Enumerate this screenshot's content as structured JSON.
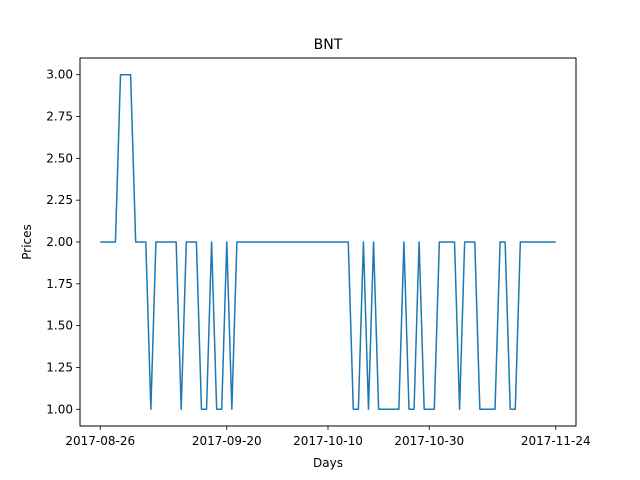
{
  "chart_data": {
    "type": "line",
    "title": "BNT",
    "xlabel": "Days",
    "ylabel": "Prices",
    "x_tick_labels": [
      "2017-08-26",
      "2017-09-20",
      "2017-10-10",
      "2017-10-30",
      "2017-11-24"
    ],
    "y_tick_labels": [
      "1.00",
      "1.25",
      "1.50",
      "1.75",
      "2.00",
      "2.25",
      "2.50",
      "2.75",
      "3.00"
    ],
    "y_ticks": [
      1.0,
      1.25,
      1.5,
      1.75,
      2.0,
      2.25,
      2.5,
      2.75,
      3.0
    ],
    "xlim": [
      "2017-08-22",
      "2017-11-28"
    ],
    "ylim": [
      0.9,
      3.1
    ],
    "grid": false,
    "series": [
      {
        "color": "#1f77b4",
        "x": [
          "2017-08-26",
          "2017-08-27",
          "2017-08-28",
          "2017-08-29",
          "2017-08-30",
          "2017-08-31",
          "2017-09-01",
          "2017-09-02",
          "2017-09-03",
          "2017-09-04",
          "2017-09-05",
          "2017-09-06",
          "2017-09-07",
          "2017-09-08",
          "2017-09-09",
          "2017-09-10",
          "2017-09-11",
          "2017-09-12",
          "2017-09-13",
          "2017-09-14",
          "2017-09-15",
          "2017-09-16",
          "2017-09-17",
          "2017-09-18",
          "2017-09-19",
          "2017-09-20",
          "2017-09-21",
          "2017-09-22",
          "2017-09-23",
          "2017-09-24",
          "2017-09-25",
          "2017-09-26",
          "2017-09-27",
          "2017-09-28",
          "2017-09-29",
          "2017-09-30",
          "2017-10-01",
          "2017-10-02",
          "2017-10-03",
          "2017-10-04",
          "2017-10-05",
          "2017-10-06",
          "2017-10-07",
          "2017-10-08",
          "2017-10-09",
          "2017-10-10",
          "2017-10-11",
          "2017-10-12",
          "2017-10-13",
          "2017-10-14",
          "2017-10-15",
          "2017-10-16",
          "2017-10-17",
          "2017-10-18",
          "2017-10-19",
          "2017-10-20",
          "2017-10-21",
          "2017-10-22",
          "2017-10-23",
          "2017-10-24",
          "2017-10-25",
          "2017-10-26",
          "2017-10-27",
          "2017-10-28",
          "2017-10-29",
          "2017-10-30",
          "2017-10-31",
          "2017-11-01",
          "2017-11-02",
          "2017-11-03",
          "2017-11-04",
          "2017-11-05",
          "2017-11-06",
          "2017-11-07",
          "2017-11-08",
          "2017-11-09",
          "2017-11-10",
          "2017-11-11",
          "2017-11-12",
          "2017-11-13",
          "2017-11-14",
          "2017-11-15",
          "2017-11-16",
          "2017-11-17",
          "2017-11-18",
          "2017-11-19",
          "2017-11-20",
          "2017-11-21",
          "2017-11-22",
          "2017-11-23",
          "2017-11-24"
        ],
        "y": [
          2,
          2,
          2,
          2,
          3,
          3,
          3,
          2,
          2,
          2,
          1,
          2,
          2,
          2,
          2,
          2,
          1,
          2,
          2,
          2,
          1,
          1,
          2,
          1,
          1,
          2,
          1,
          2,
          2,
          2,
          2,
          2,
          2,
          2,
          2,
          2,
          2,
          2,
          2,
          2,
          2,
          2,
          2,
          2,
          2,
          2,
          2,
          2,
          2,
          2,
          1,
          1,
          2,
          1,
          2,
          1,
          1,
          1,
          1,
          1,
          2,
          1,
          1,
          2,
          1,
          1,
          1,
          2,
          2,
          2,
          2,
          1,
          2,
          2,
          2,
          1,
          1,
          1,
          1,
          2,
          2,
          1,
          1,
          2,
          2,
          2,
          2,
          2,
          2,
          2,
          2
        ]
      }
    ]
  }
}
